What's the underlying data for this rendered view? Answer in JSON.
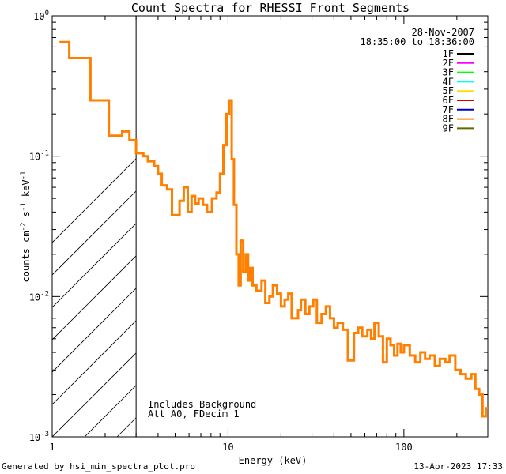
{
  "chart_data": {
    "type": "line",
    "title": "Count Spectra for RHESSI Front Segments",
    "xlabel": "Energy (keV)",
    "ylabel_parts": [
      "counts cm",
      "-2",
      " s",
      "-1",
      " keV",
      "-1"
    ],
    "xscale": "log",
    "yscale": "log",
    "xlim": [
      1,
      300
    ],
    "ylim": [
      0.001,
      1
    ],
    "x_ticks": [
      {
        "value": 1,
        "label": "1"
      },
      {
        "value": 10,
        "label": "10"
      },
      {
        "value": 100,
        "label": "100"
      }
    ],
    "y_ticks": [
      {
        "value": 0.001,
        "base": "10",
        "exp": "-3"
      },
      {
        "value": 0.01,
        "base": "10",
        "exp": "-2"
      },
      {
        "value": 0.1,
        "base": "10",
        "exp": "-1"
      },
      {
        "value": 1,
        "base": "10",
        "exp": "0"
      }
    ],
    "date": "28-Nov-2007",
    "time_range": "18:35:00 to 18:36:00",
    "legend_placement": "top-right",
    "legend": [
      {
        "name": "1F",
        "color": "#000000"
      },
      {
        "name": "2F",
        "color": "#ff00ff"
      },
      {
        "name": "3F",
        "color": "#00ff00"
      },
      {
        "name": "4F",
        "color": "#00ffff"
      },
      {
        "name": "5F",
        "color": "#ffdd00"
      },
      {
        "name": "6F",
        "color": "#dd0000"
      },
      {
        "name": "7F",
        "color": "#0000cc"
      },
      {
        "name": "8F",
        "color": "#ff8000"
      },
      {
        "name": "9F",
        "color": "#666600"
      }
    ],
    "hatched_region": {
      "from": 1,
      "to": 3
    },
    "annotations": [
      "Includes Background",
      "Att A0, FDecim 1"
    ],
    "series": [
      {
        "name": "8F",
        "color": "#ff8000",
        "steps": [
          [
            1.1,
            0.65
          ],
          [
            1.25,
            0.5
          ],
          [
            1.45,
            0.5
          ],
          [
            1.65,
            0.25
          ],
          [
            1.9,
            0.25
          ],
          [
            2.1,
            0.14
          ],
          [
            2.5,
            0.15
          ],
          [
            2.75,
            0.13
          ],
          [
            3.0,
            0.105
          ],
          [
            3.3,
            0.1
          ],
          [
            3.5,
            0.092
          ],
          [
            3.8,
            0.085
          ],
          [
            4.0,
            0.075
          ],
          [
            4.2,
            0.062
          ],
          [
            4.5,
            0.058
          ],
          [
            4.8,
            0.038
          ],
          [
            5.3,
            0.048
          ],
          [
            5.6,
            0.06
          ],
          [
            5.9,
            0.04
          ],
          [
            6.2,
            0.052
          ],
          [
            6.5,
            0.046
          ],
          [
            6.8,
            0.05
          ],
          [
            7.2,
            0.045
          ],
          [
            7.6,
            0.04
          ],
          [
            8.1,
            0.05
          ],
          [
            8.6,
            0.055
          ],
          [
            9.0,
            0.075
          ],
          [
            9.4,
            0.12
          ],
          [
            9.8,
            0.2
          ],
          [
            10.15,
            0.25
          ],
          [
            10.5,
            0.095
          ],
          [
            10.8,
            0.045
          ],
          [
            11.15,
            0.02
          ],
          [
            11.5,
            0.012
          ],
          [
            11.8,
            0.025
          ],
          [
            12.2,
            0.015
          ],
          [
            12.6,
            0.02
          ],
          [
            13.0,
            0.013
          ],
          [
            13.3,
            0.016
          ],
          [
            13.8,
            0.012
          ],
          [
            14.5,
            0.011
          ],
          [
            15.5,
            0.013
          ],
          [
            16.3,
            0.009
          ],
          [
            17.2,
            0.01
          ],
          [
            18.0,
            0.012
          ],
          [
            19.0,
            0.0105
          ],
          [
            20.0,
            0.0085
          ],
          [
            21.0,
            0.0095
          ],
          [
            22.0,
            0.0105
          ],
          [
            23.0,
            0.007
          ],
          [
            25.0,
            0.008
          ],
          [
            26.0,
            0.0095
          ],
          [
            27.5,
            0.0075
          ],
          [
            29.0,
            0.0085
          ],
          [
            30.5,
            0.0095
          ],
          [
            32.0,
            0.0065
          ],
          [
            34.0,
            0.0075
          ],
          [
            36.0,
            0.0085
          ],
          [
            38.0,
            0.007
          ],
          [
            40.0,
            0.006
          ],
          [
            42.0,
            0.0065
          ],
          [
            45.0,
            0.0058
          ],
          [
            48.0,
            0.0035
          ],
          [
            52.0,
            0.0055
          ],
          [
            55.0,
            0.006
          ],
          [
            58.0,
            0.0052
          ],
          [
            62.0,
            0.0058
          ],
          [
            65.0,
            0.005
          ],
          [
            68.0,
            0.0065
          ],
          [
            72.0,
            0.0052
          ],
          [
            76.0,
            0.0034
          ],
          [
            80.0,
            0.005
          ],
          [
            84.0,
            0.0045
          ],
          [
            88.0,
            0.0038
          ],
          [
            92.0,
            0.0046
          ],
          [
            96.0,
            0.004
          ],
          [
            100.0,
            0.0045
          ],
          [
            108.0,
            0.0038
          ],
          [
            116.0,
            0.0034
          ],
          [
            124.0,
            0.004
          ],
          [
            132.0,
            0.0036
          ],
          [
            140.0,
            0.0038
          ],
          [
            150.0,
            0.0032
          ],
          [
            160.0,
            0.0036
          ],
          [
            172.0,
            0.0034
          ],
          [
            182.0,
            0.0038
          ],
          [
            196.0,
            0.003
          ],
          [
            210.0,
            0.0028
          ],
          [
            225.0,
            0.0026
          ],
          [
            242.0,
            0.0028
          ],
          [
            255.0,
            0.0022
          ],
          [
            268.0,
            0.002
          ],
          [
            280.0,
            0.0014
          ],
          [
            292.0,
            0.0016
          ],
          [
            300.0,
            0.0016
          ]
        ]
      }
    ]
  },
  "footer": {
    "generated_by": "Generated by hsi_min_spectra_plot.pro",
    "timestamp": "13-Apr-2023 17:33"
  }
}
